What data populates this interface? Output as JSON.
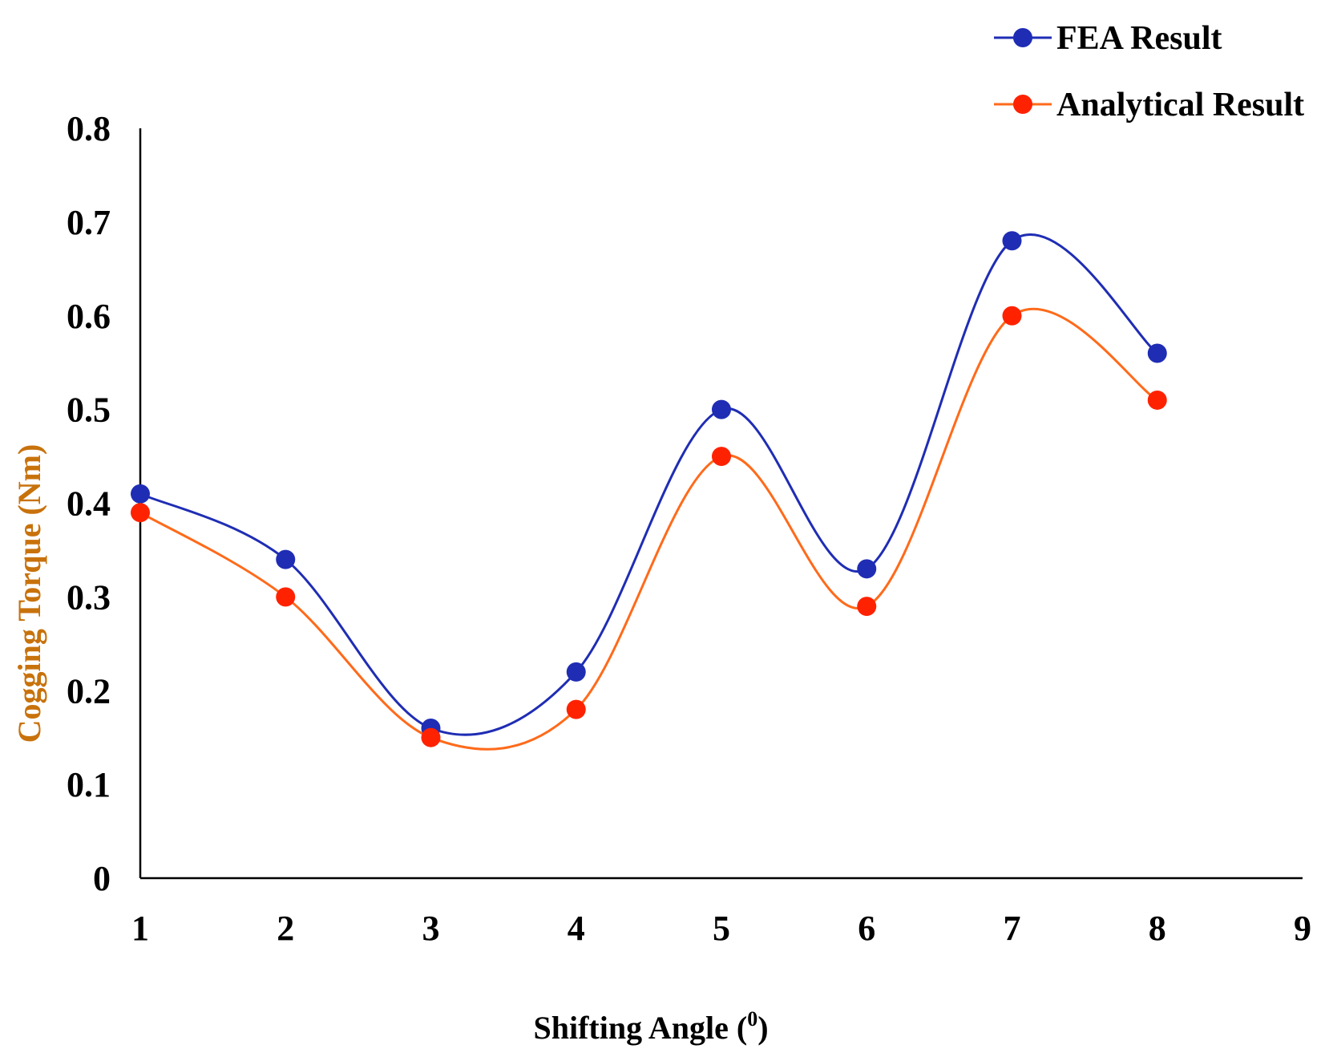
{
  "chart_data": {
    "type": "line",
    "title": "",
    "xlabel": "Shifting Angle",
    "xlabel_paren_open": "(",
    "xlabel_superscript": "0",
    "xlabel_paren_close": ")",
    "ylabel": "Cogging Torque (Nm)",
    "x": [
      1,
      2,
      3,
      4,
      5,
      6,
      7,
      8
    ],
    "xlim": [
      1,
      9
    ],
    "ylim": [
      0,
      0.8
    ],
    "x_ticks": [
      "1",
      "2",
      "3",
      "4",
      "5",
      "6",
      "7",
      "8",
      "9"
    ],
    "y_ticks": [
      "0",
      "0.1",
      "0.2",
      "0.3",
      "0.4",
      "0.5",
      "0.6",
      "0.7",
      "0.8"
    ],
    "smooth": true,
    "grid": false,
    "legend_position": "top-right",
    "series": [
      {
        "name": "FEA Result",
        "color": "#1f2db4",
        "values": [
          0.41,
          0.34,
          0.16,
          0.22,
          0.5,
          0.33,
          0.68,
          0.56
        ]
      },
      {
        "name": "Analytical Result",
        "color": "#ff2200",
        "line_color": "#ff6a1a",
        "values": [
          0.39,
          0.3,
          0.15,
          0.18,
          0.45,
          0.29,
          0.6,
          0.51
        ]
      }
    ],
    "ylabel_color": "#c8720c",
    "axis_color": "#000000"
  }
}
